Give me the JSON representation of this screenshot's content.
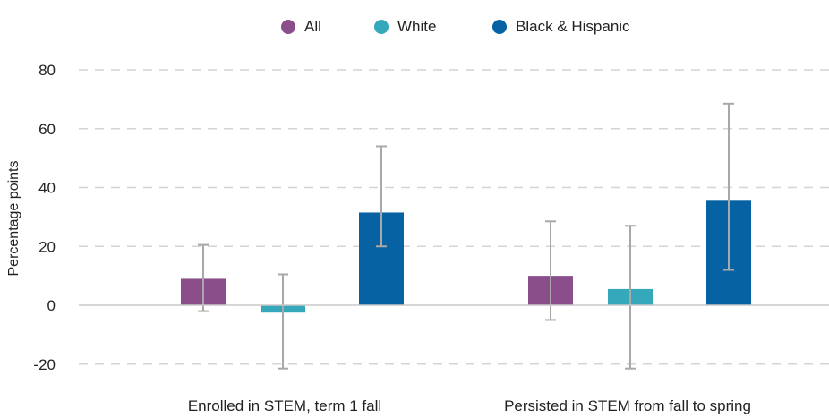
{
  "chart_data": {
    "type": "bar",
    "title": "",
    "xlabel": "",
    "ylabel": "Percentage points",
    "ylim": [
      -25,
      80
    ],
    "yticks": [
      80,
      60,
      40,
      20,
      0,
      -20
    ],
    "ytick_labels": [
      "80",
      "60",
      "40",
      "20",
      "0",
      "-20"
    ],
    "grid": true,
    "legend_position": "top-center",
    "categories": [
      "Enrolled in STEM, term 1 fall",
      "Persisted in STEM from fall to spring"
    ],
    "series": [
      {
        "name": "All",
        "color": "#8a4f8b",
        "values": [
          9,
          10
        ],
        "err_low": [
          -2,
          -5
        ],
        "err_high": [
          20.5,
          28.5
        ]
      },
      {
        "name": "White",
        "color": "#35a8bb",
        "values": [
          -2.5,
          5.5
        ],
        "err_low": [
          -21.5,
          -21.5
        ],
        "err_high": [
          10.5,
          27
        ]
      },
      {
        "name": "Black & Hispanic",
        "color": "#0662a3",
        "values": [
          31.5,
          35.5
        ],
        "err_low": [
          20,
          12
        ],
        "err_high": [
          54,
          68.5
        ]
      }
    ]
  }
}
